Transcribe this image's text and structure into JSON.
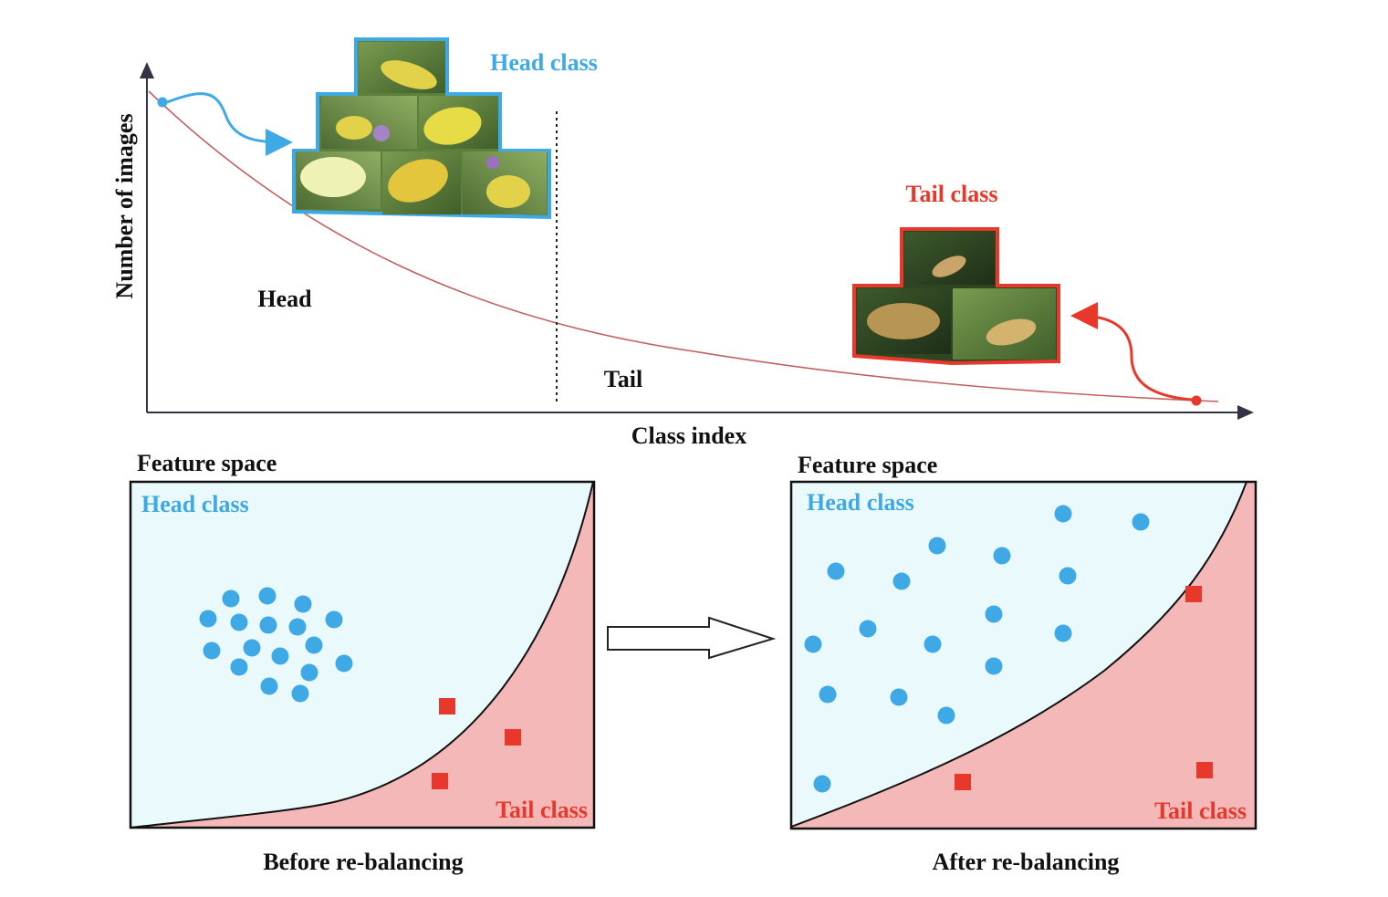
{
  "top_plot": {
    "y_axis_label": "Number of images",
    "x_axis_label": "Class index",
    "head_region_label": "Head",
    "tail_region_label": "Tail",
    "head_class_label": "Head class",
    "tail_class_label": "Tail class"
  },
  "left_panel": {
    "title": "Feature space",
    "head_label": "Head class",
    "tail_label": "Tail class",
    "caption": "Before re-balancing"
  },
  "right_panel": {
    "title": "Feature space",
    "head_label": "Head class",
    "tail_label": "Tail class",
    "caption": "After re-balancing"
  },
  "colors": {
    "head": "#3fa9e6",
    "tail": "#e8382c",
    "head_region": "#eaf9fc",
    "tail_region": "#f4b8b8",
    "curve": "#c06060",
    "axis": "#334",
    "photo_green": "#5d7f3c",
    "photo_yellow": "#e2d24a"
  },
  "icons": {
    "arrow": "hollow-right-arrow",
    "head_photos": "butterfly-photo-collage",
    "tail_photos": "moth-photo-collage"
  }
}
